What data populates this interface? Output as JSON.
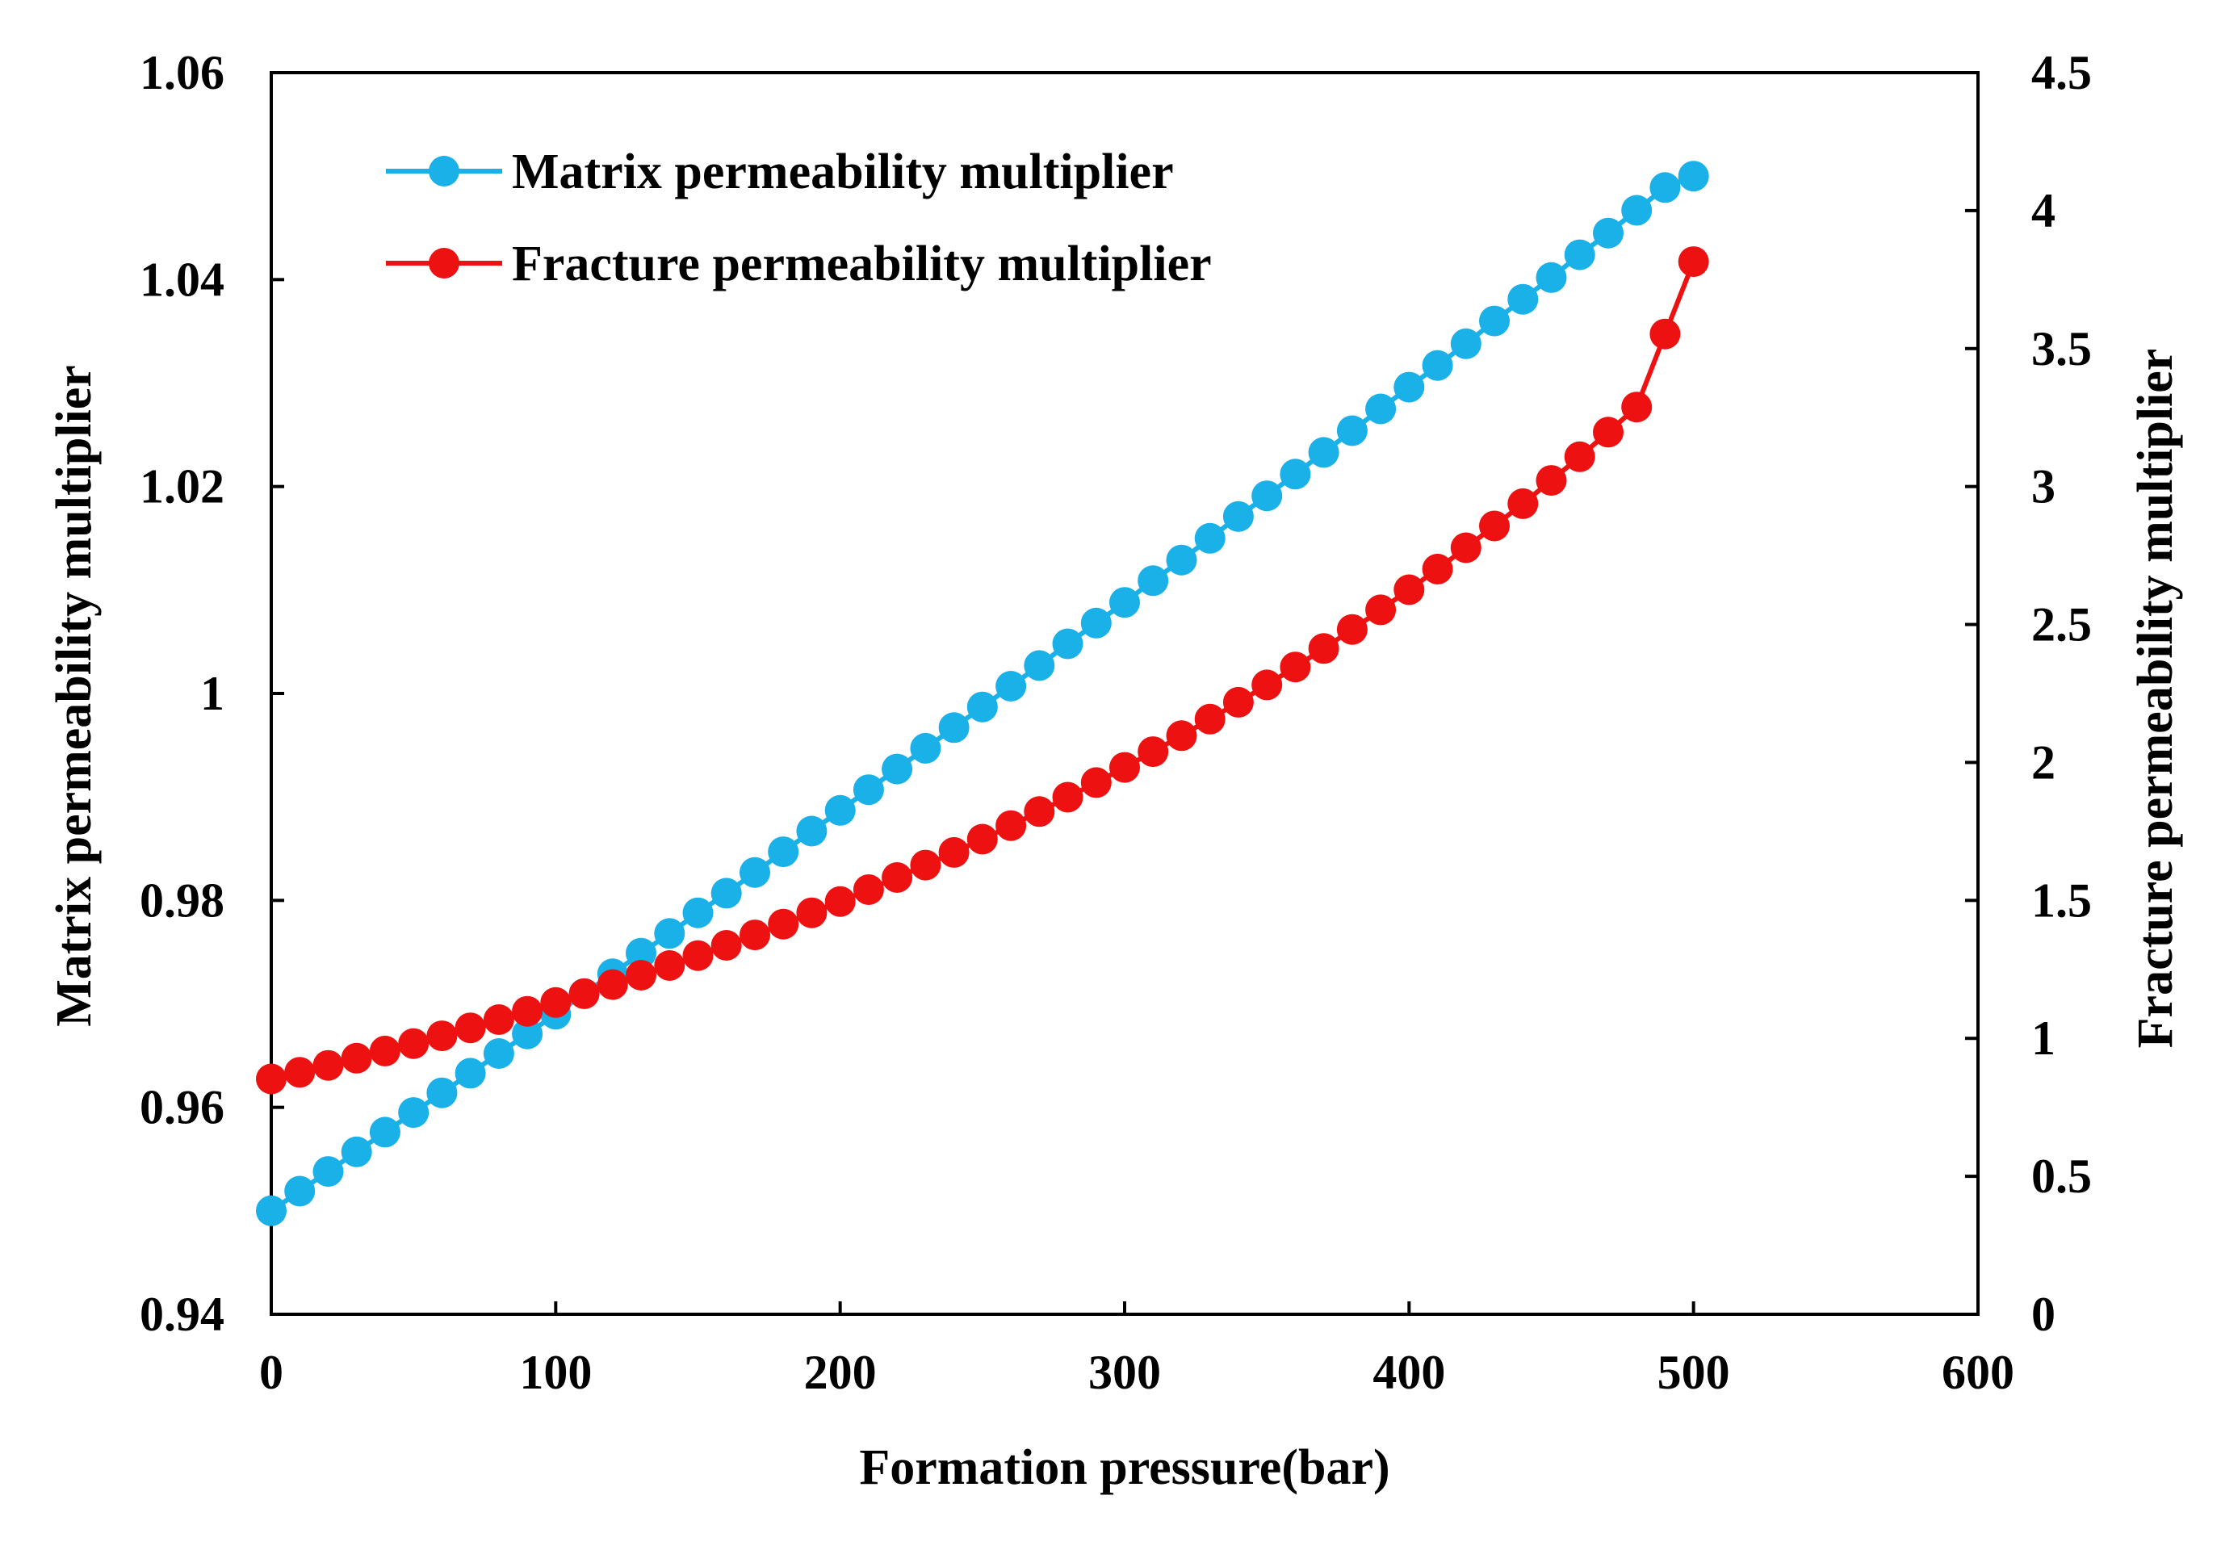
{
  "chart_data": {
    "type": "line",
    "title": "",
    "xlabel": "Formation pressure(bar)",
    "ylabel": "Matrix permeability multiplier",
    "y2label": "Fracture permeability multiplier",
    "xlim": [
      0,
      600
    ],
    "ylim": [
      0.94,
      1.06
    ],
    "y2lim": [
      0,
      4.5
    ],
    "xticks": [
      0,
      100,
      200,
      300,
      400,
      500,
      600
    ],
    "xtick_labels": [
      "0",
      "100",
      "200",
      "300",
      "400",
      "500",
      "600"
    ],
    "yticks": [
      0.94,
      0.96,
      0.98,
      1.0,
      1.02,
      1.04,
      1.06
    ],
    "ytick_labels": [
      "0.94",
      "0.96",
      "0.98",
      "1",
      "1.02",
      "1.04",
      "1.06"
    ],
    "y2ticks": [
      0,
      0.5,
      1,
      1.5,
      2,
      2.5,
      3,
      3.5,
      4,
      4.5
    ],
    "y2tick_labels": [
      "0",
      "0.5",
      "1",
      "1.5",
      "2",
      "2.5",
      "3",
      "3.5",
      "4",
      "4.5"
    ],
    "grid": false,
    "legend_position": "top-left",
    "x": [
      0,
      10,
      20,
      30,
      40,
      50,
      60,
      70,
      80,
      90,
      100,
      110,
      120,
      130,
      140,
      150,
      160,
      170,
      180,
      190,
      200,
      210,
      220,
      230,
      240,
      250,
      260,
      270,
      280,
      290,
      300,
      310,
      320,
      330,
      340,
      350,
      360,
      370,
      380,
      390,
      400,
      410,
      420,
      430,
      440,
      450,
      460,
      470,
      480,
      490,
      500
    ],
    "series": [
      {
        "name": "Matrix permeability multiplier",
        "axis": "left",
        "color": "#1ab0e8",
        "values": [
          0.95,
          0.9519,
          0.9538,
          0.9557,
          0.9576,
          0.9595,
          0.9614,
          0.9633,
          0.9652,
          0.9671,
          0.969,
          0.971,
          0.9729,
          0.9749,
          0.9768,
          0.9788,
          0.9807,
          0.9827,
          0.9847,
          0.9867,
          0.9887,
          0.9907,
          0.9927,
          0.9947,
          0.9967,
          0.9987,
          1.0007,
          1.0027,
          1.0048,
          1.0068,
          1.0088,
          1.0109,
          1.0129,
          1.015,
          1.0171,
          1.0191,
          1.0212,
          1.0233,
          1.0254,
          1.0275,
          1.0296,
          1.0317,
          1.0338,
          1.036,
          1.0381,
          1.0402,
          1.0424,
          1.0445,
          1.0467,
          1.0489,
          1.05
        ]
      },
      {
        "name": "Fracture permeability multiplier",
        "axis": "right",
        "color": "#ee1111",
        "values": [
          0.853,
          0.877,
          0.902,
          0.928,
          0.954,
          0.981,
          1.009,
          1.038,
          1.068,
          1.098,
          1.13,
          1.162,
          1.195,
          1.229,
          1.264,
          1.3,
          1.337,
          1.375,
          1.414,
          1.455,
          1.496,
          1.539,
          1.583,
          1.628,
          1.674,
          1.722,
          1.771,
          1.822,
          1.874,
          1.927,
          1.982,
          2.039,
          2.097,
          2.157,
          2.218,
          2.281,
          2.346,
          2.413,
          2.482,
          2.553,
          2.626,
          2.701,
          2.778,
          2.857,
          2.938,
          3.022,
          3.108,
          3.197,
          3.288,
          3.553,
          3.815
        ]
      }
    ]
  }
}
